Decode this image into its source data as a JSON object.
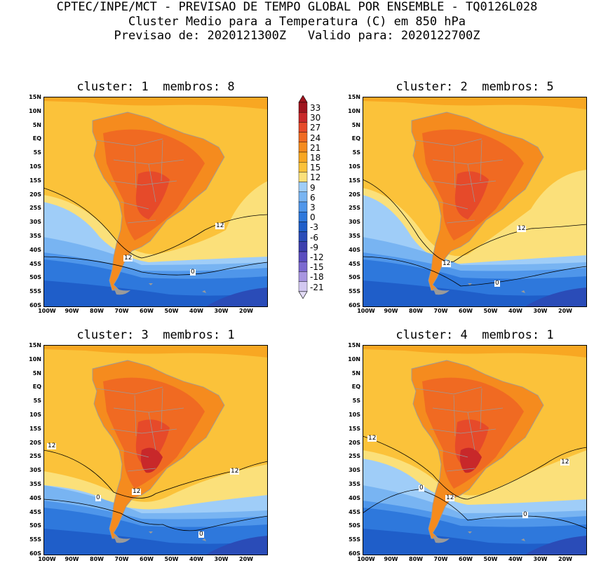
{
  "header": {
    "line1": "CPTEC/INPE/MCT - PREVISAO DE TEMPO GLOBAL POR ENSEMBLE - TQ0126L028",
    "line2": "Cluster Medio para a Temperatura (C) em 850 hPa",
    "line3": "Previsao de: 2020121300Z   Valido para: 2020122700Z"
  },
  "panels": [
    {
      "title": "cluster: 1  membros: 8"
    },
    {
      "title": "cluster: 2  membros: 5"
    },
    {
      "title": "cluster: 3  membros: 1"
    },
    {
      "title": "cluster: 4  membros: 1"
    }
  ],
  "lat_labels": [
    "15N",
    "10N",
    "5N",
    "EQ",
    "5S",
    "10S",
    "15S",
    "20S",
    "25S",
    "30S",
    "35S",
    "40S",
    "45S",
    "50S",
    "55S",
    "60S"
  ],
  "lon_labels": [
    "100W",
    "90W",
    "80W",
    "70W",
    "60W",
    "50W",
    "40W",
    "30W",
    "20W"
  ],
  "contour_labels": {
    "p1": [
      "12",
      "12",
      "0"
    ],
    "p2": [
      "12",
      "12",
      "0"
    ],
    "p3": [
      "12",
      "12",
      "12",
      "0",
      "0"
    ],
    "p4": [
      "12",
      "12",
      "12",
      "0",
      "0"
    ]
  },
  "colorbar": {
    "levels": [
      "33",
      "30",
      "27",
      "24",
      "21",
      "18",
      "15",
      "12",
      "9",
      "6",
      "3",
      "0",
      "-3",
      "-6",
      "-9",
      "-12",
      "-15",
      "-18",
      "-21"
    ],
    "colors": [
      "#a0141e",
      "#c8282a",
      "#e64a2a",
      "#f06a22",
      "#f58b1e",
      "#f8a722",
      "#fbc23a",
      "#fbe07a",
      "#9fcdf8",
      "#78b4f2",
      "#4f96ea",
      "#2e78dc",
      "#1f5ec9",
      "#2a4cb8",
      "#3c3fae",
      "#5a4dbf",
      "#7c6ad0",
      "#a896e0",
      "#d2c8f0"
    ],
    "top_color": "#a0141e",
    "bottom_color": "#e3dcf6"
  }
}
